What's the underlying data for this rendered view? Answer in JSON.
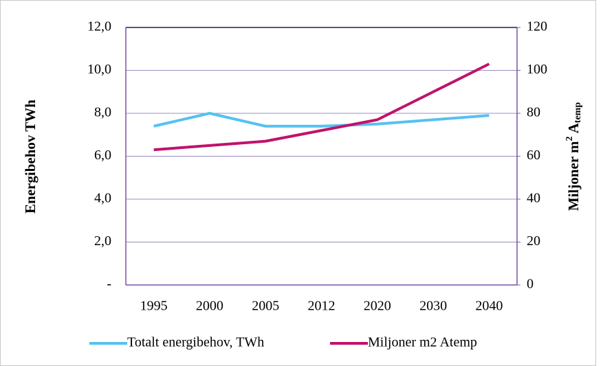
{
  "chart_data": {
    "type": "line",
    "categories": [
      "1995",
      "2000",
      "2005",
      "2012",
      "2020",
      "2030",
      "2040"
    ],
    "series": [
      {
        "name": "Totalt energibehov, TWh",
        "color": "#55c1f2",
        "values": [
          7.4,
          8.0,
          7.4,
          7.4,
          7.5,
          7.7,
          7.9
        ]
      },
      {
        "name": "Miljoner m2 Atemp",
        "color": "#c0126b",
        "axis": "y2",
        "values": [
          63,
          65,
          67,
          72,
          77,
          90,
          103
        ]
      }
    ],
    "ylabel": "Energibehov TWh",
    "y2label": [
      "Miljoner m",
      "2",
      " A",
      "temp"
    ],
    "ylim": [
      0,
      12
    ],
    "yticks": [
      {
        "value": 0,
        "label": "-"
      },
      {
        "value": 2,
        "label": "2,0"
      },
      {
        "value": 4,
        "label": "4,0"
      },
      {
        "value": 6,
        "label": "6,0"
      },
      {
        "value": 8,
        "label": "8,0"
      },
      {
        "value": 10,
        "label": "10,0"
      },
      {
        "value": 12,
        "label": "12,0"
      }
    ],
    "y2lim": [
      0,
      120
    ],
    "y2ticks": [
      0,
      20,
      40,
      60,
      80,
      100,
      120
    ],
    "grid": true,
    "legend": "bottom"
  }
}
